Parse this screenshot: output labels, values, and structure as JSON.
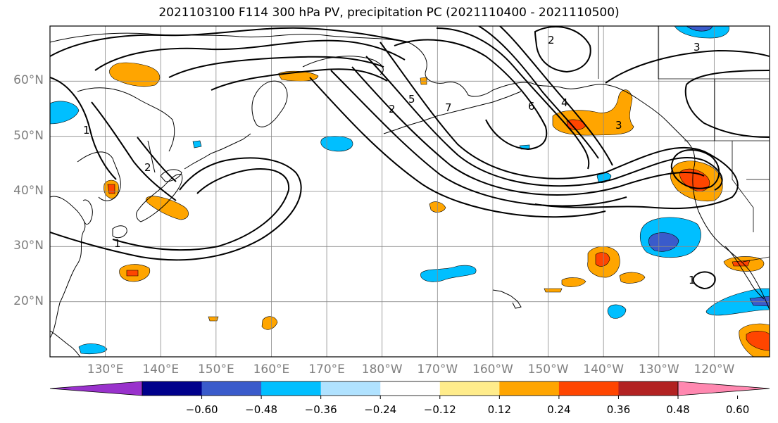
{
  "title": "2021103100 F114 300 hPa PV, precipitation PC (2021110400 - 2021110500)",
  "chart_data": {
    "type": "map-contour",
    "projection": "PlateCarree",
    "extent": {
      "lon_min": 120,
      "lon_max": 250,
      "lat_min": 10,
      "lat_max": 70
    },
    "gridlines": true,
    "lat_ticks": [
      "20°N",
      "30°N",
      "40°N",
      "50°N",
      "60°N"
    ],
    "lat_values": [
      20,
      30,
      40,
      50,
      60
    ],
    "lon_ticks": [
      "130°E",
      "140°E",
      "150°E",
      "160°E",
      "170°E",
      "180°W",
      "170°W",
      "160°W",
      "150°W",
      "140°W",
      "130°W",
      "120°W"
    ],
    "lon_values": [
      130,
      140,
      150,
      160,
      170,
      180,
      190,
      200,
      210,
      220,
      230,
      240
    ],
    "pv_contour_labels": [
      "1",
      "2",
      "3",
      "4",
      "5",
      "6",
      "7"
    ],
    "colorbar": {
      "extend": "both",
      "ticks": [
        "−0.60",
        "−0.48",
        "−0.36",
        "−0.24",
        "−0.12",
        "0.12",
        "0.24",
        "0.36",
        "0.48",
        "0.60"
      ],
      "tick_values": [
        -0.6,
        -0.48,
        -0.36,
        -0.24,
        -0.12,
        0.12,
        0.24,
        0.36,
        0.48,
        0.6
      ],
      "colors": [
        "#9932cc",
        "#00008b",
        "#3a5bcb",
        "#00bfff",
        "#b0e2ff",
        "#ffffff",
        "#ffec8b",
        "#ffa500",
        "#ff4500",
        "#b22222",
        "#ff88b0"
      ]
    },
    "precip_regions": [
      {
        "name": "neg-japan-west",
        "lon": 122,
        "lat": 54,
        "value": -0.3
      },
      {
        "name": "neg-bering-south",
        "lon": 170,
        "lat": 48,
        "value": -0.3
      },
      {
        "name": "neg-hawaii-nw",
        "lon": 195,
        "lat": 25,
        "value": -0.3
      },
      {
        "name": "neg-ne-pacific",
        "lon": 231,
        "lat": 31,
        "value": -0.4
      },
      {
        "name": "neg-east-20n",
        "lon": 240,
        "lat": 21,
        "value": -0.3
      },
      {
        "name": "neg-north-edge",
        "lon": 236,
        "lat": 69,
        "value": -0.3
      },
      {
        "name": "pos-okhotsk",
        "lon": 133,
        "lat": 61,
        "value": 0.3
      },
      {
        "name": "pos-kuril",
        "lon": 162,
        "lat": 61,
        "value": 0.25
      },
      {
        "name": "pos-japan",
        "lon": 141,
        "lat": 37,
        "value": 0.3
      },
      {
        "name": "pos-sakhalin",
        "lon": 130,
        "lat": 41,
        "value": 0.38
      },
      {
        "name": "pos-gulf-alaska",
        "lon": 214,
        "lat": 52,
        "value": 0.38
      },
      {
        "name": "pos-california",
        "lon": 235,
        "lat": 42,
        "value": 0.4
      },
      {
        "name": "pos-mid-pacific",
        "lon": 220,
        "lat": 27,
        "value": 0.38
      },
      {
        "name": "pos-baja",
        "lon": 242,
        "lat": 27,
        "value": 0.38
      },
      {
        "name": "pos-east-15n",
        "lon": 247,
        "lat": 14,
        "value": 0.42
      },
      {
        "name": "pos-west-25n",
        "lon": 135,
        "lat": 25,
        "value": 0.38
      }
    ]
  }
}
